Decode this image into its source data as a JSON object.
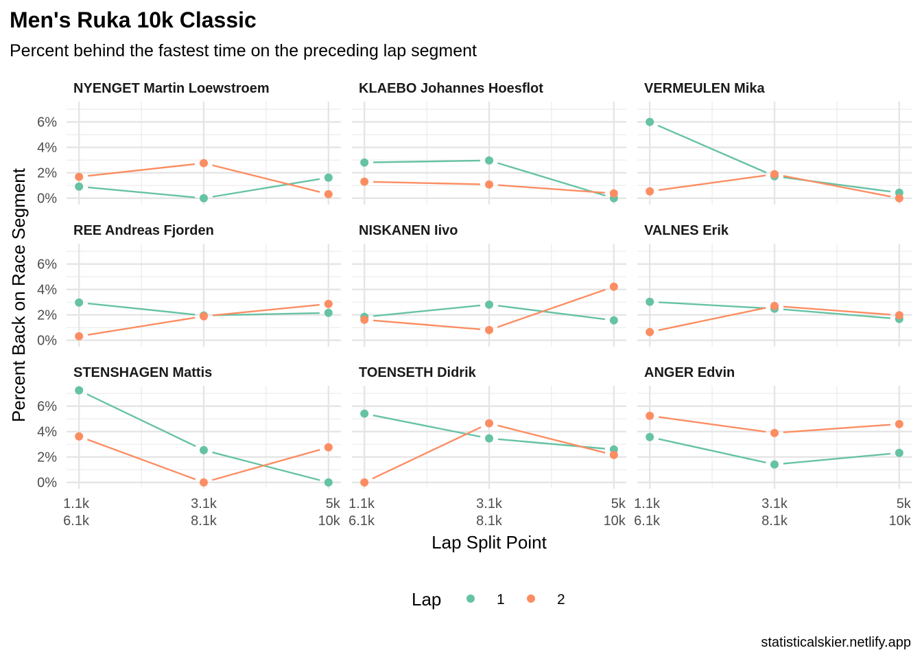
{
  "chart_data": {
    "type": "line",
    "title": "Men's Ruka 10k Classic",
    "subtitle": "Percent behind the fastest time on the preceding lap segment",
    "xlabel": "Lap Split Point",
    "ylabel": "Percent Back on Race Segment",
    "caption": "statisticalskier.netlify.app",
    "x_tick_labels": [
      [
        "1.1k",
        "6.1k"
      ],
      [
        "3.1k",
        "8.1k"
      ],
      [
        "5k",
        "10k"
      ]
    ],
    "y_ticks": [
      0,
      2,
      4,
      6
    ],
    "y_tick_labels": [
      "0%",
      "2%",
      "4%",
      "6%"
    ],
    "ylim": [
      -0.5,
      7.6
    ],
    "grid": true,
    "legend": {
      "title": "Lap",
      "position": "bottom",
      "entries": [
        "1",
        "2"
      ]
    },
    "colors": {
      "1": "#66c2a5",
      "2": "#fc8d62"
    },
    "panels": [
      {
        "name": "NYENGET Martin Loewstroem",
        "series": [
          {
            "lap": "1",
            "values": [
              0.92,
              0.0,
              1.62
            ]
          },
          {
            "lap": "2",
            "values": [
              1.68,
              2.76,
              0.32
            ]
          }
        ]
      },
      {
        "name": "KLAEBO Johannes Hoesflot",
        "series": [
          {
            "lap": "1",
            "values": [
              2.81,
              2.97,
              0.0
            ]
          },
          {
            "lap": "2",
            "values": [
              1.3,
              1.08,
              0.38
            ]
          }
        ]
      },
      {
        "name": "VERMEULEN Mika",
        "series": [
          {
            "lap": "1",
            "values": [
              6.0,
              1.73,
              0.43
            ]
          },
          {
            "lap": "2",
            "values": [
              0.54,
              1.89,
              0.0
            ]
          }
        ]
      },
      {
        "name": "REE Andreas Fjorden",
        "series": [
          {
            "lap": "1",
            "values": [
              2.97,
              1.95,
              2.16
            ]
          },
          {
            "lap": "2",
            "values": [
              0.32,
              1.89,
              2.86
            ]
          }
        ]
      },
      {
        "name": "NISKANEN Iivo",
        "series": [
          {
            "lap": "1",
            "values": [
              1.84,
              2.81,
              1.57
            ]
          },
          {
            "lap": "2",
            "values": [
              1.62,
              0.81,
              4.22
            ]
          }
        ]
      },
      {
        "name": "VALNES Erik",
        "series": [
          {
            "lap": "1",
            "values": [
              3.03,
              2.49,
              1.68
            ]
          },
          {
            "lap": "2",
            "values": [
              0.65,
              2.7,
              1.97
            ]
          }
        ]
      },
      {
        "name": "STENSHAGEN Mattis",
        "series": [
          {
            "lap": "1",
            "values": [
              7.24,
              2.54,
              0.0
            ]
          },
          {
            "lap": "2",
            "values": [
              3.62,
              0.0,
              2.76
            ]
          }
        ]
      },
      {
        "name": "TOENSETH Didrik",
        "series": [
          {
            "lap": "1",
            "values": [
              5.41,
              3.46,
              2.59
            ]
          },
          {
            "lap": "2",
            "values": [
              0.0,
              4.65,
              2.16
            ]
          }
        ]
      },
      {
        "name": "ANGER Edvin",
        "series": [
          {
            "lap": "1",
            "values": [
              3.57,
              1.41,
              2.32
            ]
          },
          {
            "lap": "2",
            "values": [
              5.24,
              3.89,
              4.59
            ]
          }
        ]
      }
    ]
  }
}
